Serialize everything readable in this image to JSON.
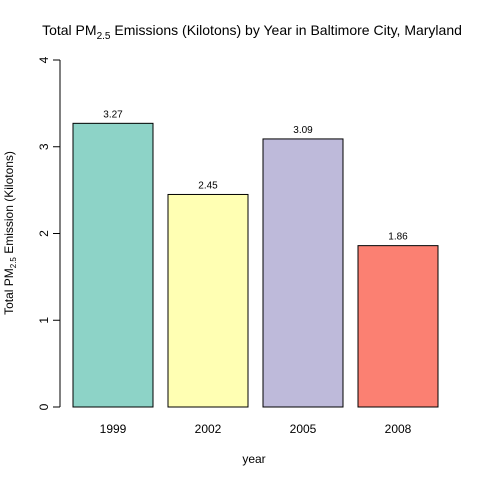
{
  "chart_data": {
    "type": "bar",
    "title": {
      "prefix": "Total PM",
      "subscript": "2.5",
      "suffix": " Emissions (Kilotons) by Year in Baltimore City, Maryland"
    },
    "xlabel": "year",
    "ylabel": {
      "prefix": "Total PM",
      "subscript": "2.5",
      "suffix": " Emission (Kilotons)"
    },
    "categories": [
      "1999",
      "2002",
      "2005",
      "2008"
    ],
    "values": [
      3.27,
      2.45,
      3.09,
      1.86
    ],
    "value_labels": [
      "3.27",
      "2.45",
      "3.09",
      "1.86"
    ],
    "colors": [
      "#8DD3C7",
      "#FFFFB3",
      "#BEBADA",
      "#FB8072"
    ],
    "ylim": [
      0,
      4
    ],
    "y_ticks": [
      0,
      1,
      2,
      3,
      4
    ],
    "y_tick_labels": [
      "0",
      "1",
      "2",
      "3",
      "4"
    ],
    "grid": false,
    "legend": "none"
  }
}
